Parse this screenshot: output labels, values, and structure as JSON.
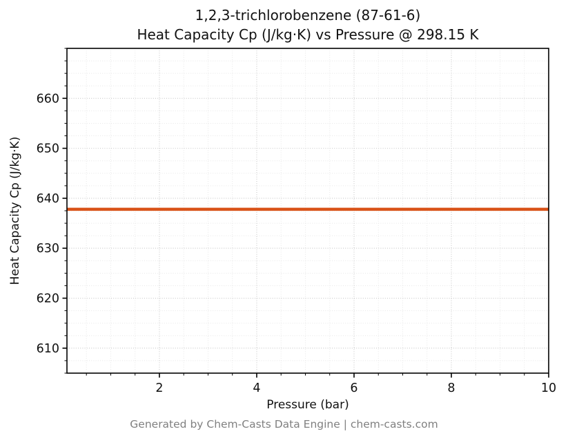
{
  "chart": {
    "title_line1": "1,2,3-trichlorobenzene (87-61-6)",
    "title_line2": "Heat Capacity Cp (J/kg·K) vs Pressure @ 298.15 K",
    "xlabel": "Pressure (bar)",
    "ylabel": "Heat Capacity Cp (J/kg·K)",
    "footer": "Generated by Chem-Casts Data Engine | chem-casts.com"
  },
  "chart_data": {
    "type": "line",
    "title": "1,2,3-trichlorobenzene (87-61-6) Heat Capacity Cp (J/kg·K) vs Pressure @ 298.15 K",
    "xlabel": "Pressure (bar)",
    "ylabel": "Heat Capacity Cp (J/kg·K)",
    "x": [
      0.1,
      10
    ],
    "series": [
      {
        "name": "Cp",
        "values": [
          637.8,
          637.8
        ],
        "color": "#d95319",
        "width": 4.5
      }
    ],
    "xlim": [
      0.1,
      10
    ],
    "ylim": [
      605,
      670
    ],
    "xticks": [
      2,
      4,
      6,
      8,
      10
    ],
    "yticks": [
      610,
      620,
      630,
      640,
      650,
      660
    ],
    "x_minor_step": 0.5,
    "y_minor_step": 2.5,
    "grid": true,
    "grid_style": "dotted",
    "legend": "none",
    "temperature_K": "298.15",
    "cas_number": "87-61-6",
    "substance": "1,2,3-trichlorobenzene"
  }
}
